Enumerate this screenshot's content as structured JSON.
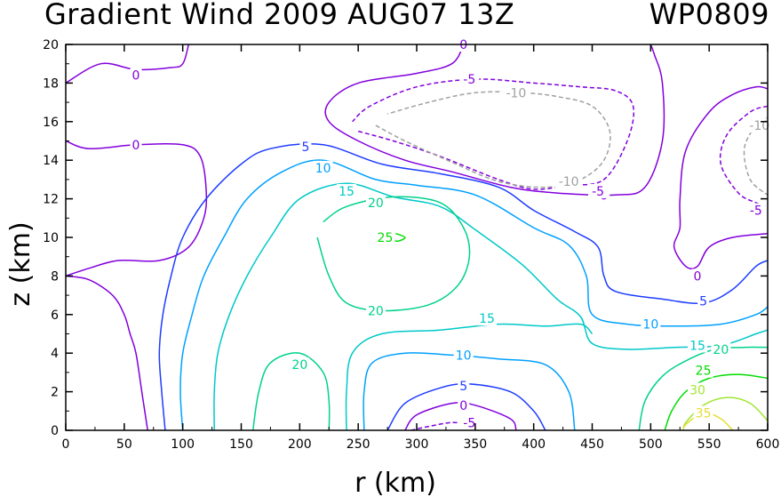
{
  "chart_data": {
    "type": "contour",
    "title": "Gradient Wind 2009 AUG07 13Z",
    "storm_id": "WP0809",
    "xlabel": "r (km)",
    "ylabel": "z (km)",
    "xlim": [
      0,
      600
    ],
    "ylim": [
      0,
      20
    ],
    "xticks": [
      0,
      50,
      100,
      150,
      200,
      250,
      300,
      350,
      400,
      450,
      500,
      550,
      600
    ],
    "yticks": [
      0,
      2,
      4,
      6,
      8,
      10,
      12,
      14,
      16,
      18,
      20
    ],
    "grid": false,
    "levels": [
      -10,
      -5,
      0,
      5,
      10,
      15,
      20,
      25,
      30,
      35
    ],
    "level_colors": {
      "-10": "#a0a0a0",
      "-5": "#8200dc",
      "0": "#8200dc",
      "5": "#1e3cff",
      "10": "#00a0ff",
      "15": "#00c8c8",
      "20": "#00d28c",
      "25": "#00dc00",
      "30": "#a0e632",
      "35": "#e6dc32"
    },
    "contours": [
      {
        "level": 0,
        "points": [
          [
            0,
            18
          ],
          [
            30,
            19
          ],
          [
            60,
            18.7
          ],
          [
            90,
            18.8
          ],
          [
            100,
            19
          ],
          [
            105,
            20
          ]
        ]
      },
      {
        "level": 0,
        "points": [
          [
            0,
            15
          ],
          [
            20,
            14.6
          ],
          [
            60,
            14.8
          ],
          [
            100,
            14.8
          ],
          [
            115,
            14.2
          ],
          [
            120,
            12.5
          ],
          [
            118,
            11
          ],
          [
            105,
            9.5
          ],
          [
            80,
            8.8
          ],
          [
            45,
            8.8
          ],
          [
            20,
            8.4
          ],
          [
            0,
            8
          ]
        ]
      },
      {
        "level": 0,
        "points": [
          [
            0,
            8
          ],
          [
            20,
            7.8
          ],
          [
            40,
            7
          ],
          [
            50,
            6
          ],
          [
            55,
            5
          ],
          [
            60,
            4
          ],
          [
            65,
            2
          ],
          [
            70,
            0
          ]
        ]
      },
      {
        "level": 0,
        "points": [
          [
            340,
            20
          ],
          [
            330,
            19
          ],
          [
            300,
            18.5
          ],
          [
            250,
            18
          ],
          [
            225,
            17
          ],
          [
            225,
            16
          ],
          [
            250,
            15
          ],
          [
            290,
            14
          ],
          [
            330,
            13.4
          ],
          [
            380,
            12.6
          ],
          [
            420,
            12.3
          ],
          [
            470,
            12.2
          ],
          [
            495,
            12.6
          ],
          [
            510,
            15
          ],
          [
            510,
            18
          ],
          [
            503,
            19.5
          ],
          [
            500,
            20
          ]
        ]
      },
      {
        "level": 0,
        "points": [
          [
            600,
            17.7
          ],
          [
            590,
            17.8
          ],
          [
            570,
            17.4
          ],
          [
            550,
            16.5
          ],
          [
            530,
            14.5
          ],
          [
            525,
            12
          ],
          [
            525,
            10.5
          ],
          [
            520,
            9.5
          ],
          [
            530,
            8.5
          ],
          [
            540,
            8.5
          ],
          [
            550,
            9.5
          ],
          [
            570,
            10
          ],
          [
            600,
            10.2
          ]
        ]
      },
      {
        "level": 0,
        "points": [
          [
            290,
            0
          ],
          [
            300,
            0.8
          ],
          [
            330,
            1.4
          ],
          [
            350,
            1.3
          ],
          [
            380,
            0.6
          ],
          [
            385,
            0
          ]
        ]
      },
      {
        "level": -5,
        "points": [
          [
            250,
            15.5
          ],
          [
            280,
            15
          ],
          [
            320,
            14.2
          ],
          [
            370,
            13
          ],
          [
            400,
            12.5
          ],
          [
            430,
            12.7
          ],
          [
            460,
            13
          ],
          [
            480,
            15
          ],
          [
            485,
            16.8
          ],
          [
            470,
            17.6
          ],
          [
            440,
            17.8
          ],
          [
            400,
            18
          ],
          [
            350,
            18.2
          ],
          [
            300,
            17.8
          ],
          [
            260,
            16.8
          ],
          [
            245,
            16
          ]
        ]
      },
      {
        "level": -5,
        "points": [
          [
            600,
            16.8
          ],
          [
            585,
            16.5
          ],
          [
            565,
            15.3
          ],
          [
            560,
            13.8
          ],
          [
            575,
            12.3
          ],
          [
            590,
            11.8
          ],
          [
            600,
            11.6
          ]
        ]
      },
      {
        "level": -5,
        "points": [
          [
            295,
            0
          ],
          [
            310,
            0.2
          ],
          [
            330,
            0.4
          ],
          [
            345,
            0.3
          ],
          [
            350,
            0
          ]
        ]
      },
      {
        "level": -10,
        "points": [
          [
            265,
            15.8
          ],
          [
            290,
            15
          ],
          [
            330,
            13.9
          ],
          [
            370,
            12.9
          ],
          [
            410,
            12.6
          ],
          [
            440,
            13
          ],
          [
            460,
            14
          ],
          [
            465,
            15.5
          ],
          [
            450,
            16.8
          ],
          [
            420,
            17.3
          ],
          [
            390,
            17.5
          ],
          [
            350,
            17.5
          ],
          [
            310,
            17
          ],
          [
            275,
            16.4
          ]
        ]
      },
      {
        "level": -10,
        "points": [
          [
            600,
            16.2
          ],
          [
            590,
            15.8
          ],
          [
            580,
            14.6
          ],
          [
            585,
            13
          ],
          [
            600,
            12.2
          ]
        ]
      },
      {
        "level": 5,
        "points": [
          [
            85,
            0
          ],
          [
            82,
            2
          ],
          [
            80,
            4
          ],
          [
            83,
            6
          ],
          [
            90,
            8
          ],
          [
            100,
            10
          ],
          [
            120,
            12
          ],
          [
            150,
            13.8
          ],
          [
            175,
            14.6
          ],
          [
            220,
            14.8
          ],
          [
            270,
            13.8
          ],
          [
            320,
            13.3
          ],
          [
            370,
            12.6
          ],
          [
            400,
            11.4
          ],
          [
            435,
            10.3
          ],
          [
            455,
            9.5
          ],
          [
            460,
            8
          ],
          [
            470,
            7.2
          ],
          [
            510,
            6.8
          ],
          [
            545,
            6.6
          ],
          [
            570,
            7.3
          ],
          [
            590,
            8.5
          ],
          [
            600,
            8.8
          ]
        ]
      },
      {
        "level": 5,
        "points": [
          [
            275,
            0
          ],
          [
            290,
            1.4
          ],
          [
            320,
            2.2
          ],
          [
            345,
            2.4
          ],
          [
            380,
            2
          ],
          [
            400,
            1
          ],
          [
            410,
            0
          ]
        ]
      },
      {
        "level": 10,
        "points": [
          [
            100,
            0
          ],
          [
            98,
            2
          ],
          [
            100,
            4
          ],
          [
            108,
            6
          ],
          [
            118,
            8
          ],
          [
            135,
            10
          ],
          [
            155,
            12
          ],
          [
            185,
            13.4
          ],
          [
            220,
            14
          ],
          [
            265,
            13
          ],
          [
            300,
            12.7
          ],
          [
            350,
            12.2
          ],
          [
            400,
            10.5
          ],
          [
            430,
            9.6
          ],
          [
            445,
            8
          ],
          [
            450,
            6
          ],
          [
            480,
            5.5
          ],
          [
            520,
            5.4
          ],
          [
            560,
            5.5
          ],
          [
            590,
            6
          ],
          [
            600,
            6.4
          ]
        ]
      },
      {
        "level": 10,
        "points": [
          [
            255,
            0
          ],
          [
            255,
            2
          ],
          [
            262,
            3.5
          ],
          [
            290,
            4
          ],
          [
            330,
            3.9
          ],
          [
            370,
            3.7
          ],
          [
            410,
            3.4
          ],
          [
            430,
            2
          ],
          [
            435,
            0
          ]
        ]
      },
      {
        "level": 15,
        "points": [
          [
            127,
            0
          ],
          [
            127,
            2
          ],
          [
            130,
            4
          ],
          [
            140,
            6
          ],
          [
            155,
            8
          ],
          [
            175,
            10
          ],
          [
            200,
            12
          ],
          [
            240,
            12.8
          ],
          [
            280,
            12.1
          ],
          [
            320,
            11.6
          ],
          [
            350,
            10.4
          ],
          [
            390,
            8.6
          ],
          [
            420,
            6.8
          ],
          [
            440,
            5.9
          ],
          [
            450,
            4.5
          ],
          [
            480,
            4.2
          ],
          [
            520,
            4.3
          ],
          [
            560,
            4.4
          ],
          [
            590,
            5
          ],
          [
            600,
            5.2
          ]
        ]
      },
      {
        "level": 15,
        "points": [
          [
            240,
            0
          ],
          [
            240,
            2
          ],
          [
            245,
            4
          ],
          [
            270,
            5
          ],
          [
            320,
            5.2
          ],
          [
            370,
            5.5
          ],
          [
            410,
            5.4
          ],
          [
            440,
            5.5
          ],
          [
            450,
            5
          ]
        ]
      },
      {
        "level": 20,
        "points": [
          [
            160,
            0
          ],
          [
            165,
            2
          ],
          [
            175,
            3.5
          ],
          [
            200,
            4
          ],
          [
            220,
            3
          ],
          [
            225,
            1.5
          ],
          [
            225,
            0
          ]
        ]
      },
      {
        "level": 20,
        "points": [
          [
            215,
            10
          ],
          [
            225,
            8
          ],
          [
            240,
            6.6
          ],
          [
            270,
            6.2
          ],
          [
            310,
            6.5
          ],
          [
            335,
            7.5
          ],
          [
            345,
            9
          ],
          [
            340,
            10.5
          ],
          [
            320,
            11.8
          ],
          [
            280,
            12.1
          ],
          [
            240,
            11.6
          ],
          [
            220,
            10.8
          ]
        ]
      },
      {
        "level": 20,
        "points": [
          [
            600,
            4.3
          ],
          [
            580,
            4.3
          ],
          [
            555,
            4.2
          ],
          [
            530,
            3.6
          ],
          [
            510,
            2.8
          ],
          [
            495,
            1.5
          ],
          [
            490,
            0
          ]
        ]
      },
      {
        "level": 25,
        "points": [
          [
            275,
            10
          ],
          [
            283,
            9.8
          ],
          [
            290,
            10
          ],
          [
            282,
            10.2
          ]
        ]
      },
      {
        "level": 25,
        "points": [
          [
            600,
            2.7
          ],
          [
            575,
            2.9
          ],
          [
            550,
            2.7
          ],
          [
            530,
            2
          ],
          [
            518,
            1
          ],
          [
            512,
            0
          ]
        ]
      },
      {
        "level": 30,
        "points": [
          [
            600,
            0.5
          ],
          [
            585,
            1.4
          ],
          [
            565,
            1.7
          ],
          [
            545,
            1.3
          ],
          [
            530,
            0.4
          ],
          [
            528,
            0
          ]
        ]
      },
      {
        "level": 35,
        "points": [
          [
            570,
            0
          ],
          [
            560,
            0.6
          ],
          [
            545,
            0.9
          ],
          [
            530,
            0.3
          ],
          [
            528,
            0
          ]
        ]
      }
    ],
    "contour_labels": [
      {
        "text": "0",
        "x": 60,
        "y": 18.4
      },
      {
        "text": "0",
        "x": 60,
        "y": 14.8
      },
      {
        "text": "0",
        "x": 340,
        "y": 20
      },
      {
        "text": "0",
        "x": 460,
        "y": 12.2
      },
      {
        "text": "0",
        "x": 540,
        "y": 8
      },
      {
        "text": "0",
        "x": 340,
        "y": 1.3
      },
      {
        "text": "-5",
        "x": 345,
        "y": 18.2
      },
      {
        "text": "-5",
        "x": 455,
        "y": 12.4
      },
      {
        "text": "-5",
        "x": 590,
        "y": 11.4
      },
      {
        "text": "-5",
        "x": 345,
        "y": 0.4
      },
      {
        "text": "-10",
        "x": 385,
        "y": 17.5
      },
      {
        "text": "-10",
        "x": 430,
        "y": 12.9
      },
      {
        "text": "-10",
        "x": 593,
        "y": 15.8
      },
      {
        "text": "5",
        "x": 205,
        "y": 14.7
      },
      {
        "text": "5",
        "x": 545,
        "y": 6.7
      },
      {
        "text": "5",
        "x": 340,
        "y": 2.3
      },
      {
        "text": "10",
        "x": 220,
        "y": 13.6
      },
      {
        "text": "10",
        "x": 500,
        "y": 5.5
      },
      {
        "text": "10",
        "x": 340,
        "y": 3.9
      },
      {
        "text": "15",
        "x": 240,
        "y": 12.4
      },
      {
        "text": "15",
        "x": 360,
        "y": 5.8
      },
      {
        "text": "15",
        "x": 540,
        "y": 4.4
      },
      {
        "text": "20",
        "x": 265,
        "y": 11.8
      },
      {
        "text": "20",
        "x": 265,
        "y": 6.2
      },
      {
        "text": "20",
        "x": 200,
        "y": 3.4
      },
      {
        "text": "20",
        "x": 560,
        "y": 4.2
      },
      {
        "text": "25",
        "x": 273,
        "y": 10
      },
      {
        "text": "25",
        "x": 545,
        "y": 3.1
      },
      {
        "text": "30",
        "x": 540,
        "y": 2.1
      },
      {
        "text": "35",
        "x": 545,
        "y": 0.9
      }
    ]
  }
}
